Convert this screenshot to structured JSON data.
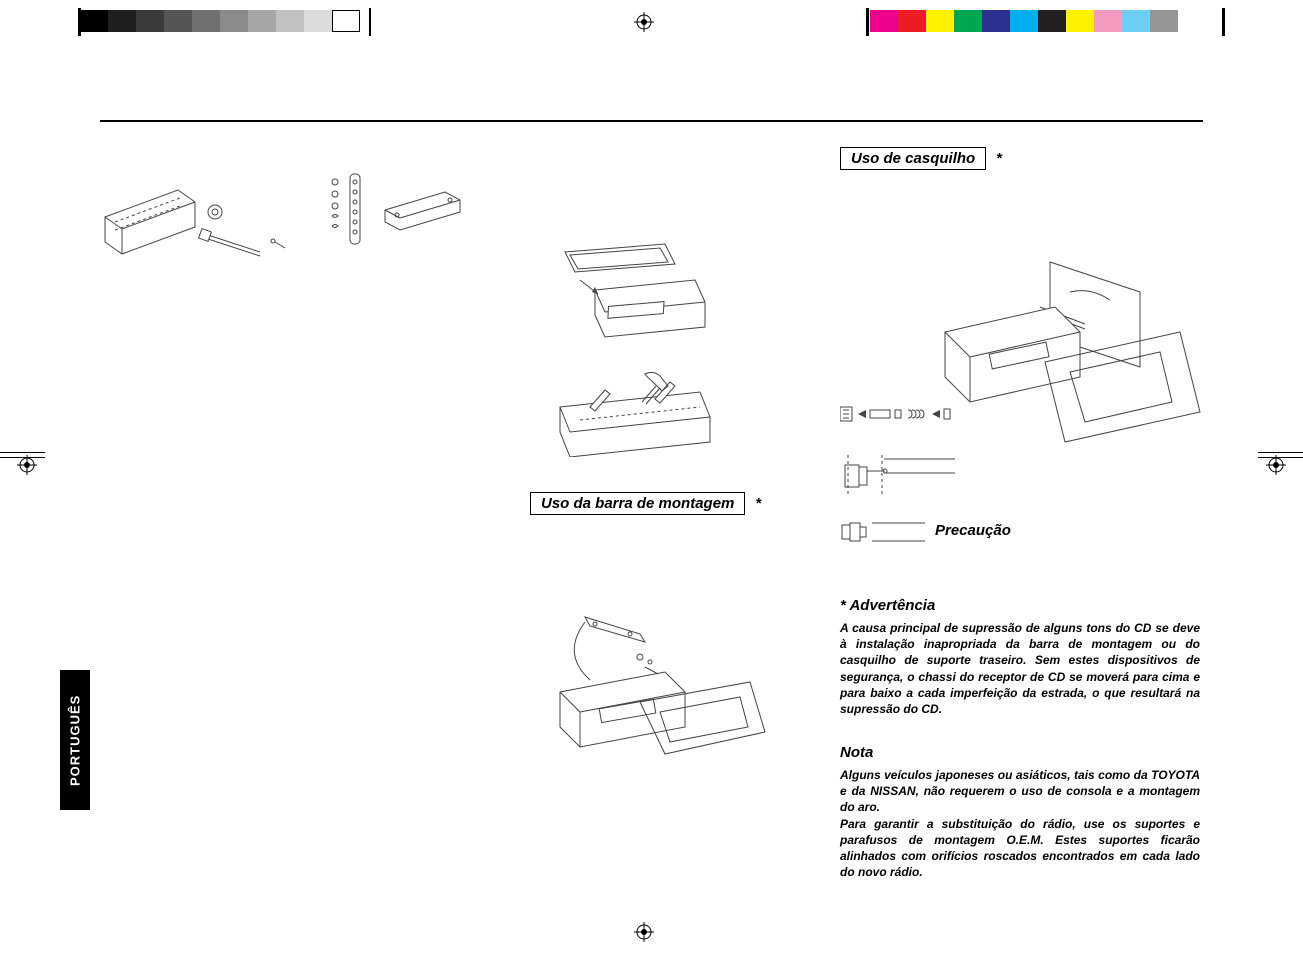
{
  "swatches_left": [
    "#000000",
    "#1f1f1f",
    "#3a3a3a",
    "#555555",
    "#707070",
    "#8b8b8b",
    "#a6a6a6",
    "#c1c1c1",
    "#dcdcdc",
    "#ffffff"
  ],
  "swatches_right": [
    "#ec008c",
    "#ed1c24",
    "#fff200",
    "#00a651",
    "#2e3192",
    "#00aeef",
    "#231f20",
    "#fff200",
    "#f49ac1",
    "#6dcff6",
    "#959595"
  ],
  "headings": {
    "barra": "Uso da barra de montagem",
    "casquilho": "Uso de casquilho",
    "precaution": "Precaução",
    "advertencia": "* Advertência",
    "nota": "Nota"
  },
  "text": {
    "advertencia": "A causa principal de supressão de alguns tons do CD se deve à instalação inapropriada da barra de montagem ou do casquilho de suporte traseiro. Sem estes dispositivos de segurança, o chassi do receptor de CD se moverá para cima e para baixo a cada imperfeição da estrada, o que resultará na supressão do CD.",
    "nota": "Alguns veículos japoneses ou asiáticos, tais como da TOYOTA e da NISSAN, não requerem o uso de consola e a montagem do aro.\nPara garantir a substituição do rádio, use os suportes e parafusos de montagem O.E.M. Estes suportes ficarão alinhados com orifícios roscados encontrados em cada lado do novo rádio."
  },
  "asterisk": "*",
  "lang_tab": "PORTUGUÊS",
  "style": {
    "heading_fontsize": 15,
    "body_fontsize": 12,
    "body_line_height": 1.35,
    "border_width": 1.5,
    "colors": {
      "text": "#000000",
      "background": "#ffffff",
      "diagram_stroke": "#444444",
      "tab_bg": "#000000",
      "tab_fg": "#ffffff"
    }
  }
}
